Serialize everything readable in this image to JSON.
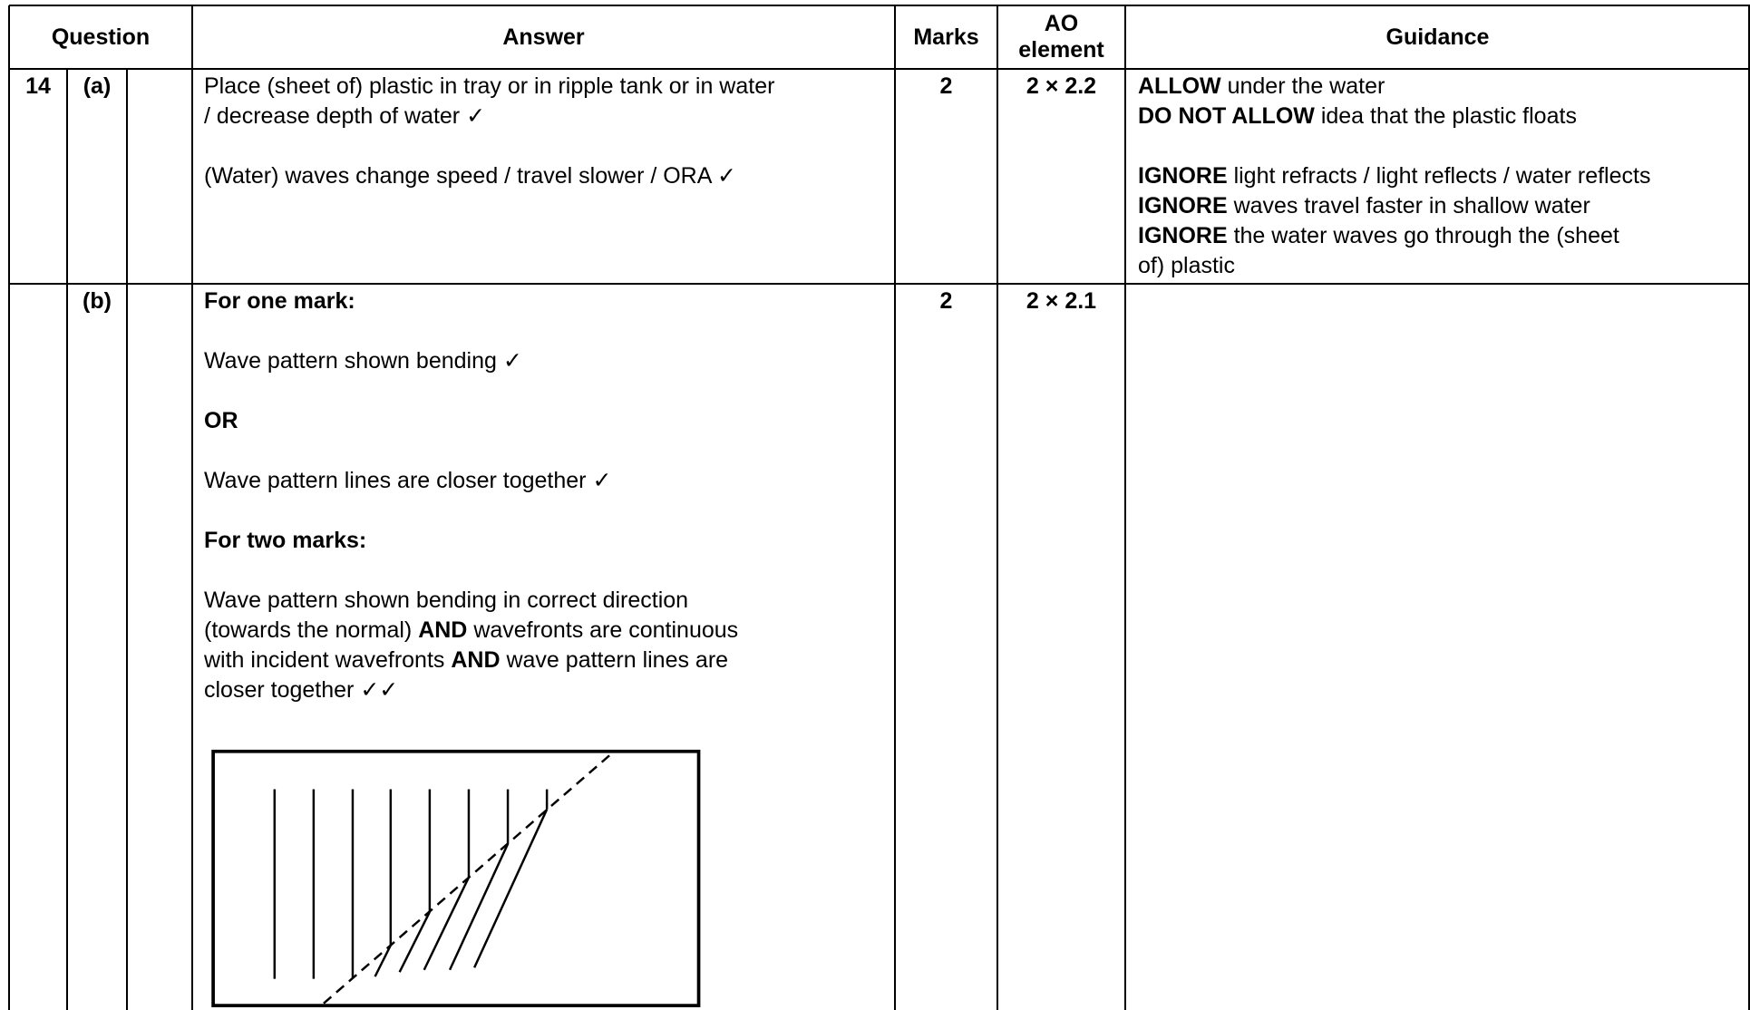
{
  "header": {
    "question": "Question",
    "answer": "Answer",
    "marks": "Marks",
    "ao": "AO element",
    "guidance": "Guidance"
  },
  "rows": [
    {
      "number": "14",
      "part": "(a)",
      "marks": 2,
      "ao": "2 × 2.2",
      "answer": [
        [
          [
            {
              "t": "Place (sheet of) plastic in tray or in ripple tank or in water"
            }
          ],
          [
            {
              "t": "/ decrease depth of water ✓"
            }
          ]
        ],
        [
          [
            {
              "t": "(Water) waves change speed / travel slower / ORA ✓"
            }
          ]
        ]
      ],
      "guidance": [
        [
          [
            {
              "b": "ALLOW"
            },
            {
              "t": " under the water"
            }
          ],
          [
            {
              "b": "DO NOT ALLOW"
            },
            {
              "t": " idea that the plastic floats"
            }
          ]
        ],
        [
          [
            {
              "b": "IGNORE"
            },
            {
              "t": " light refracts / light reflects / water reflects"
            }
          ],
          [
            {
              "b": "IGNORE"
            },
            {
              "t": " waves travel faster in shallow water"
            }
          ],
          [
            {
              "b": "IGNORE"
            },
            {
              "t": " the water waves go through the (sheet"
            }
          ],
          [
            {
              "t": "of) plastic"
            }
          ]
        ]
      ]
    },
    {
      "part": "(b)",
      "marks": 2,
      "ao": "2 × 2.1",
      "answer": [
        [
          [
            {
              "b": "For one mark:"
            }
          ]
        ],
        [
          [
            {
              "t": "Wave pattern shown bending ✓"
            }
          ]
        ],
        [
          [
            {
              "b": "OR"
            }
          ]
        ],
        [
          [
            {
              "t": "Wave pattern lines are closer together ✓"
            }
          ]
        ],
        [
          [
            {
              "b": "For two marks:"
            }
          ]
        ],
        [
          [
            {
              "t": "Wave pattern shown bending in correct direction"
            }
          ],
          [
            {
              "t": "(towards the normal) "
            },
            {
              "b": "AND"
            },
            {
              "t": " wavefronts are continuous"
            }
          ],
          [
            {
              "t": "with incident wavefronts "
            },
            {
              "b": "AND"
            },
            {
              "t": " wave pattern lines are"
            }
          ],
          [
            {
              "t": "closer together ✓✓"
            }
          ]
        ]
      ]
    }
  ]
}
